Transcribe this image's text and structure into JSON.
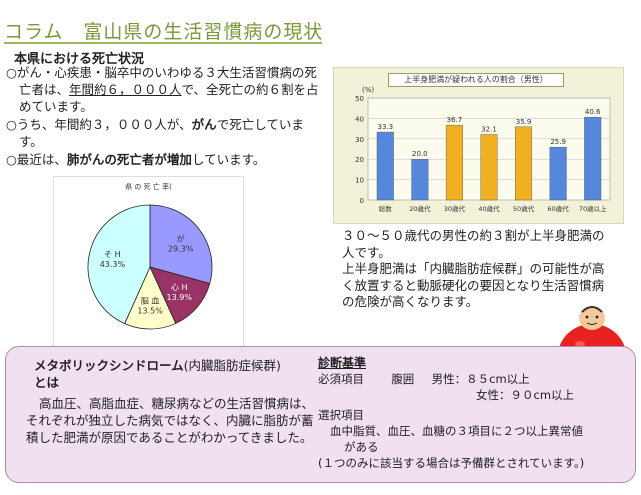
{
  "title": "コラム　富山県の生活習慣病の現状",
  "section_heading": "本県における死亡状況",
  "bullets": {
    "b1_a": "○がん・心疾患・脳卒中のいわゆる３大生活習慣病の死亡者は、",
    "b1_u": "年間約６，０００人",
    "b1_b": "で、全死亡の約６割を占めています。",
    "b2_a": "○うち、年間約３，０００人が、",
    "b2_b": "がん",
    "b2_c": "で死亡しています。",
    "b3_a": "○最近は、",
    "b3_b": "肺がんの死亡者が増加",
    "b3_c": "しています。"
  },
  "pie_chart": {
    "title": "県 の 死 亡 率(",
    "slices": [
      {
        "label": "が",
        "value": 29.3,
        "value_label": "29.3%",
        "color": "#9999ff"
      },
      {
        "label": "心 H",
        "value": 13.9,
        "value_label": "13.9%",
        "color": "#993366"
      },
      {
        "label": "脳 血",
        "value": 13.5,
        "value_label": "13.5%",
        "color": "#ffffcc"
      },
      {
        "label": "そ H",
        "value": 43.3,
        "value_label": "43.3%",
        "color": "#ccffff"
      }
    ]
  },
  "chart_data": {
    "type": "bar",
    "title": "上半身肥満が疑われる人の割合（男性）",
    "ylabel": "(%)",
    "ylim": [
      0,
      50
    ],
    "yticks": [
      0,
      10,
      20,
      30,
      40,
      50
    ],
    "categories": [
      "総数",
      "20歳代",
      "30歳代",
      "40歳代",
      "50歳代",
      "60歳代",
      "70歳以上"
    ],
    "values": [
      33.3,
      20.0,
      36.7,
      32.1,
      35.9,
      25.9,
      40.6
    ],
    "value_labels": [
      "33.3",
      "20.0",
      "36.7",
      "32.1",
      "35.9",
      "25.9",
      "40.6"
    ],
    "colors": [
      "#5588dd",
      "#5588dd",
      "#f0b020",
      "#f0b020",
      "#f0b020",
      "#5588dd",
      "#5588dd"
    ]
  },
  "right_text": {
    "p1": "３０～５０歳代の男性の約３割が上半身肥満の人です。",
    "p2": "上半身肥満は「内臓脂肪症候群」の可能性が高く放置すると動脈硬化の要因となり生活習慣病の危険が高くなります。"
  },
  "metabo": {
    "title_a": "メタボリックシンドローム",
    "title_b": "(内臓脂肪症候群)",
    "title_c": "とは",
    "body": "高血圧、高脂血症、糖尿病などの生活習慣病は、それぞれが独立した病気ではなく、内臓に脂肪が蓄積した肥満が原因であることがわかってきました。"
  },
  "diagnosis": {
    "heading": "診断基準",
    "required_label": "必須項目",
    "waist_label": "腹囲",
    "male": "男性：８５cm以上",
    "female": "女性：９０cm以上",
    "optional_label": "選択項目",
    "optional_text_1": "血中脂質、血圧、血糖の３項目に２つ以上異常値",
    "optional_text_2": "がある",
    "note": "(１つのみに該当する場合は予備群とされています。)"
  },
  "colors": {
    "title": "#7a9a3a",
    "bottom_bg": "#f0e0f0",
    "mascot": "#e82020"
  }
}
